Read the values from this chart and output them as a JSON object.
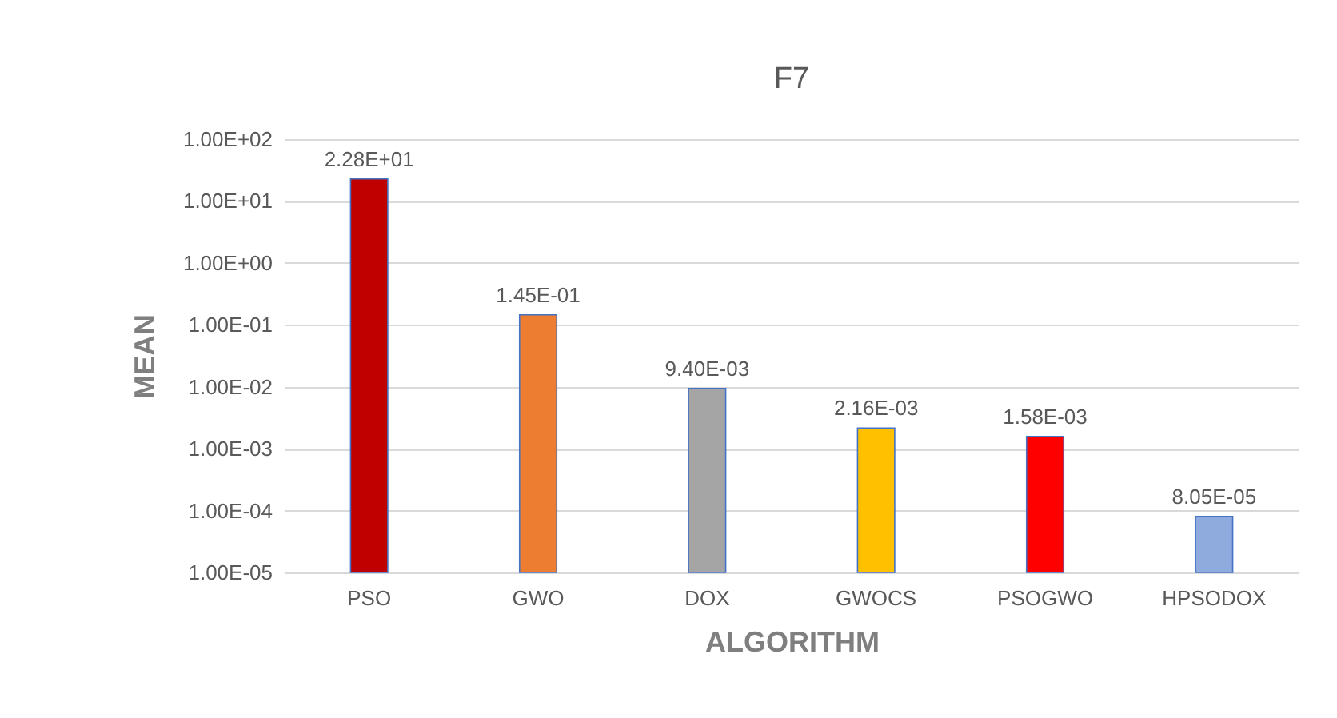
{
  "chart_data": {
    "type": "bar",
    "title": "F7",
    "xlabel": "ALGORITHM",
    "ylabel": "MEAN",
    "categories": [
      "PSO",
      "GWO",
      "DOX",
      "GWOCS",
      "PSOGWO",
      "HPSODOX"
    ],
    "values": [
      22.8,
      0.145,
      0.0094,
      0.00216,
      0.00158,
      8.05e-05
    ],
    "value_labels": [
      "2.28E+01",
      "1.45E-01",
      "9.40E-03",
      "2.16E-03",
      "1.58E-03",
      "8.05E-05"
    ],
    "colors": [
      "#c00000",
      "#ed7d31",
      "#a5a5a5",
      "#ffc000",
      "#ff0000",
      "#8faadc"
    ],
    "log": true,
    "ylim": [
      1e-05,
      100
    ],
    "yticks": [
      {
        "value": 1e-05,
        "label": "1.00E-05"
      },
      {
        "value": 0.0001,
        "label": "1.00E-04"
      },
      {
        "value": 0.001,
        "label": "1.00E-03"
      },
      {
        "value": 0.01,
        "label": "1.00E-02"
      },
      {
        "value": 0.1,
        "label": "1.00E-01"
      },
      {
        "value": 1,
        "label": "1.00E+00"
      },
      {
        "value": 10,
        "label": "1.00E+01"
      },
      {
        "value": 100,
        "label": "1.00E+02"
      }
    ],
    "grid": "y",
    "legend": false
  }
}
